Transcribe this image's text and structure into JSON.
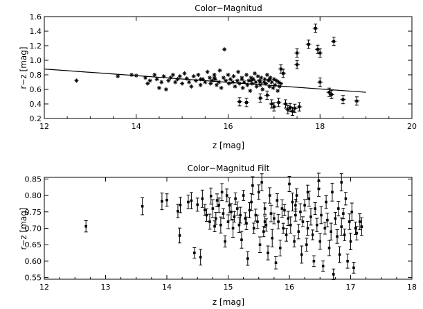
{
  "chart_data": [
    {
      "type": "scatter",
      "title": "Color−Magnitud",
      "xlabel": "z [mag]",
      "ylabel": "r−z [mag]",
      "xlim": [
        12,
        20
      ],
      "ylim": [
        0.2,
        1.6
      ],
      "xticks": [
        "12",
        "14",
        "16",
        "18",
        "20"
      ],
      "yticks": [
        "0.2",
        "0.4",
        "0.6",
        "0.8",
        "1.0",
        "1.2",
        "1.4",
        "1.6"
      ],
      "grid": false,
      "marker": "asterisk",
      "fit_line": {
        "x": [
          12,
          19
        ],
        "y": [
          0.88,
          0.56
        ]
      },
      "points": [
        [
          12.7,
          0.72
        ],
        [
          13.6,
          0.78
        ],
        [
          13.9,
          0.8
        ],
        [
          14.0,
          0.79
        ],
        [
          14.2,
          0.76
        ],
        [
          14.25,
          0.68
        ],
        [
          14.3,
          0.72
        ],
        [
          14.4,
          0.8
        ],
        [
          14.45,
          0.74
        ],
        [
          14.5,
          0.62
        ],
        [
          14.55,
          0.7
        ],
        [
          14.6,
          0.78
        ],
        [
          14.65,
          0.6
        ],
        [
          14.7,
          0.72
        ],
        [
          14.75,
          0.76
        ],
        [
          14.8,
          0.8
        ],
        [
          14.85,
          0.7
        ],
        [
          14.9,
          0.74
        ],
        [
          14.95,
          0.78
        ],
        [
          15.0,
          0.68
        ],
        [
          15.05,
          0.82
        ],
        [
          15.1,
          0.75
        ],
        [
          15.15,
          0.7
        ],
        [
          15.2,
          0.64
        ],
        [
          15.25,
          0.78
        ],
        [
          15.3,
          0.72
        ],
        [
          15.35,
          0.8
        ],
        [
          15.4,
          0.66
        ],
        [
          15.45,
          0.74
        ],
        [
          15.5,
          0.7
        ],
        [
          15.55,
          0.84
        ],
        [
          15.6,
          0.76
        ],
        [
          15.62,
          0.68
        ],
        [
          15.65,
          0.72
        ],
        [
          15.7,
          0.8
        ],
        [
          15.72,
          0.74
        ],
        [
          15.75,
          0.66
        ],
        [
          15.8,
          0.7
        ],
        [
          15.82,
          0.86
        ],
        [
          15.85,
          0.62
        ],
        [
          15.9,
          0.76
        ],
        [
          15.92,
          1.15
        ],
        [
          15.95,
          0.72
        ],
        [
          16.0,
          0.8
        ],
        [
          16.02,
          0.68
        ],
        [
          16.05,
          0.74
        ],
        [
          16.1,
          0.7
        ],
        [
          16.12,
          0.78
        ],
        [
          16.15,
          0.64
        ],
        [
          16.2,
          0.72
        ],
        [
          16.22,
          0.84
        ],
        [
          16.25,
          0.68
        ],
        [
          16.3,
          0.76
        ],
        [
          16.32,
          0.62
        ],
        [
          16.35,
          0.7
        ],
        [
          16.4,
          0.8
        ],
        [
          16.42,
          0.66
        ],
        [
          16.45,
          0.72
        ],
        [
          16.48,
          0.58
        ],
        [
          16.5,
          0.76
        ],
        [
          16.52,
          0.68
        ],
        [
          16.55,
          0.74
        ],
        [
          16.58,
          0.82
        ],
        [
          16.6,
          0.7
        ],
        [
          16.62,
          0.64
        ],
        [
          16.65,
          0.78
        ],
        [
          16.68,
          0.72
        ],
        [
          16.7,
          0.66
        ],
        [
          16.72,
          0.76
        ],
        [
          16.75,
          0.6
        ],
        [
          16.78,
          0.7
        ],
        [
          16.8,
          0.74
        ],
        [
          16.82,
          0.68
        ],
        [
          16.85,
          0.8
        ],
        [
          16.88,
          0.72
        ],
        [
          16.9,
          0.64
        ],
        [
          16.92,
          0.76
        ],
        [
          16.95,
          0.7
        ],
        [
          16.98,
          0.62
        ],
        [
          17.0,
          0.74
        ],
        [
          17.02,
          0.66
        ],
        [
          17.05,
          0.72
        ],
        [
          17.08,
          0.58
        ],
        [
          17.1,
          0.7
        ],
        [
          17.12,
          0.64
        ],
        [
          17.15,
          0.68
        ],
        [
          16.5,
          0.72
        ],
        [
          16.3,
          0.74
        ],
        [
          16.7,
          0.7
        ],
        [
          16.9,
          0.74
        ],
        [
          15.7,
          0.76
        ],
        [
          15.4,
          0.74
        ]
      ],
      "errpoints": [
        [
          16.25,
          0.43
        ],
        [
          16.4,
          0.42
        ],
        [
          16.7,
          0.48
        ],
        [
          16.85,
          0.52
        ],
        [
          16.95,
          0.4
        ],
        [
          17.0,
          0.36
        ],
        [
          17.1,
          0.42
        ],
        [
          17.15,
          0.88
        ],
        [
          17.2,
          0.82
        ],
        [
          17.25,
          0.4
        ],
        [
          17.3,
          0.32
        ],
        [
          17.35,
          0.35
        ],
        [
          17.4,
          0.3
        ],
        [
          17.45,
          0.34
        ],
        [
          17.5,
          1.1
        ],
        [
          17.5,
          0.94
        ],
        [
          17.55,
          0.36
        ],
        [
          17.75,
          1.22
        ],
        [
          17.9,
          1.44
        ],
        [
          17.95,
          1.15
        ],
        [
          18.0,
          1.1
        ],
        [
          18.0,
          0.7
        ],
        [
          18.3,
          1.26
        ],
        [
          18.2,
          0.56
        ],
        [
          18.25,
          0.53
        ],
        [
          18.5,
          0.46
        ],
        [
          18.8,
          0.44
        ]
      ]
    },
    {
      "type": "scatter",
      "title": "Color−Magnitud Filt",
      "xlabel": "z [mag]",
      "ylabel": "r−z [mag]",
      "xlim": [
        12,
        18
      ],
      "ylim": [
        0.545,
        0.855
      ],
      "xticks": [
        "12",
        "13",
        "14",
        "15",
        "16",
        "17",
        "18"
      ],
      "yticks": [
        "0.55",
        "0.60",
        "0.65",
        "0.70",
        "0.75",
        "0.80",
        "0.85"
      ],
      "grid": false,
      "marker": "errorbar",
      "points": [
        [
          12.68,
          0.706
        ],
        [
          13.6,
          0.767
        ],
        [
          13.92,
          0.782
        ],
        [
          14.0,
          0.786
        ],
        [
          14.18,
          0.752
        ],
        [
          14.21,
          0.678
        ],
        [
          14.22,
          0.771
        ],
        [
          14.35,
          0.78
        ],
        [
          14.4,
          0.784
        ],
        [
          14.45,
          0.625
        ],
        [
          14.5,
          0.772
        ],
        [
          14.55,
          0.612
        ],
        [
          14.58,
          0.79
        ],
        [
          14.62,
          0.756
        ],
        [
          14.65,
          0.74
        ],
        [
          14.7,
          0.72
        ],
        [
          14.72,
          0.798
        ],
        [
          14.75,
          0.76
        ],
        [
          14.78,
          0.706
        ],
        [
          14.8,
          0.73
        ],
        [
          14.82,
          0.785
        ],
        [
          14.85,
          0.77
        ],
        [
          14.88,
          0.71
        ],
        [
          14.9,
          0.81
        ],
        [
          14.92,
          0.745
        ],
        [
          14.95,
          0.66
        ],
        [
          14.98,
          0.8
        ],
        [
          15.0,
          0.72
        ],
        [
          15.02,
          0.77
        ],
        [
          15.05,
          0.75
        ],
        [
          15.08,
          0.7
        ],
        [
          15.1,
          0.735
        ],
        [
          15.12,
          0.79
        ],
        [
          15.15,
          0.76
        ],
        [
          15.18,
          0.71
        ],
        [
          15.2,
          0.74
        ],
        [
          15.22,
          0.665
        ],
        [
          15.25,
          0.8
        ],
        [
          15.28,
          0.73
        ],
        [
          15.3,
          0.715
        ],
        [
          15.32,
          0.608
        ],
        [
          15.35,
          0.755
        ],
        [
          15.38,
          0.78
        ],
        [
          15.4,
          0.83
        ],
        [
          15.42,
          0.7
        ],
        [
          15.45,
          0.74
        ],
        [
          15.48,
          0.72
        ],
        [
          15.5,
          0.81
        ],
        [
          15.52,
          0.65
        ],
        [
          15.55,
          0.84
        ],
        [
          15.58,
          0.69
        ],
        [
          15.6,
          0.76
        ],
        [
          15.62,
          0.71
        ],
        [
          15.65,
          0.625
        ],
        [
          15.68,
          0.8
        ],
        [
          15.7,
          0.745
        ],
        [
          15.72,
          0.67
        ],
        [
          15.75,
          0.73
        ],
        [
          15.78,
          0.595
        ],
        [
          15.8,
          0.785
        ],
        [
          15.82,
          0.72
        ],
        [
          15.85,
          0.64
        ],
        [
          15.88,
          0.76
        ],
        [
          15.9,
          0.7
        ],
        [
          15.92,
          0.755
        ],
        [
          15.95,
          0.68
        ],
        [
          15.98,
          0.73
        ],
        [
          16.0,
          0.835
        ],
        [
          16.02,
          0.71
        ],
        [
          16.05,
          0.78
        ],
        [
          16.08,
          0.66
        ],
        [
          16.1,
          0.74
        ],
        [
          16.12,
          0.8
        ],
        [
          16.15,
          0.69
        ],
        [
          16.18,
          0.75
        ],
        [
          16.2,
          0.62
        ],
        [
          16.22,
          0.72
        ],
        [
          16.25,
          0.77
        ],
        [
          16.28,
          0.65
        ],
        [
          16.3,
          0.7
        ],
        [
          16.32,
          0.79
        ],
        [
          16.35,
          0.735
        ],
        [
          16.38,
          0.68
        ],
        [
          16.4,
          0.6
        ],
        [
          16.42,
          0.76
        ],
        [
          16.45,
          0.71
        ],
        [
          16.48,
          0.82
        ],
        [
          16.5,
          0.66
        ],
        [
          16.52,
          0.74
        ],
        [
          16.55,
          0.585
        ],
        [
          16.58,
          0.7
        ],
        [
          16.6,
          0.78
        ],
        [
          16.62,
          0.725
        ],
        [
          16.65,
          0.64
        ],
        [
          16.68,
          0.69
        ],
        [
          16.7,
          0.81
        ],
        [
          16.72,
          0.56
        ],
        [
          16.75,
          0.73
        ],
        [
          16.78,
          0.675
        ],
        [
          16.8,
          0.76
        ],
        [
          16.82,
          0.62
        ],
        [
          16.85,
          0.705
        ],
        [
          16.88,
          0.745
        ],
        [
          16.9,
          0.68
        ],
        [
          16.92,
          0.79
        ],
        [
          16.95,
          0.6
        ],
        [
          16.98,
          0.72
        ],
        [
          17.0,
          0.66
        ],
        [
          17.02,
          0.75
        ],
        [
          17.05,
          0.58
        ],
        [
          17.08,
          0.7
        ],
        [
          17.1,
          0.685
        ],
        [
          17.15,
          0.72
        ],
        [
          17.18,
          0.705
        ],
        [
          16.48,
          0.845
        ],
        [
          16.3,
          0.81
        ],
        [
          16.85,
          0.84
        ],
        [
          16.1,
          0.77
        ],
        [
          15.6,
          0.72
        ]
      ]
    }
  ]
}
